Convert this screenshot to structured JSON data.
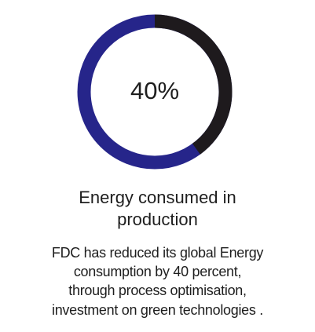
{
  "chart_data": {
    "type": "donut",
    "values": [
      40
    ],
    "value_labels": [
      "40%"
    ],
    "total": 100,
    "color": "#1e1a1d",
    "track_color": "#26258a",
    "title_lines": [
      "Energy consumed in",
      "production"
    ],
    "description_lines": [
      "FDC has reduced its global Energy",
      "consumption by 40 percent,",
      "through process optimisation,",
      "investment on green technologies ."
    ]
  }
}
